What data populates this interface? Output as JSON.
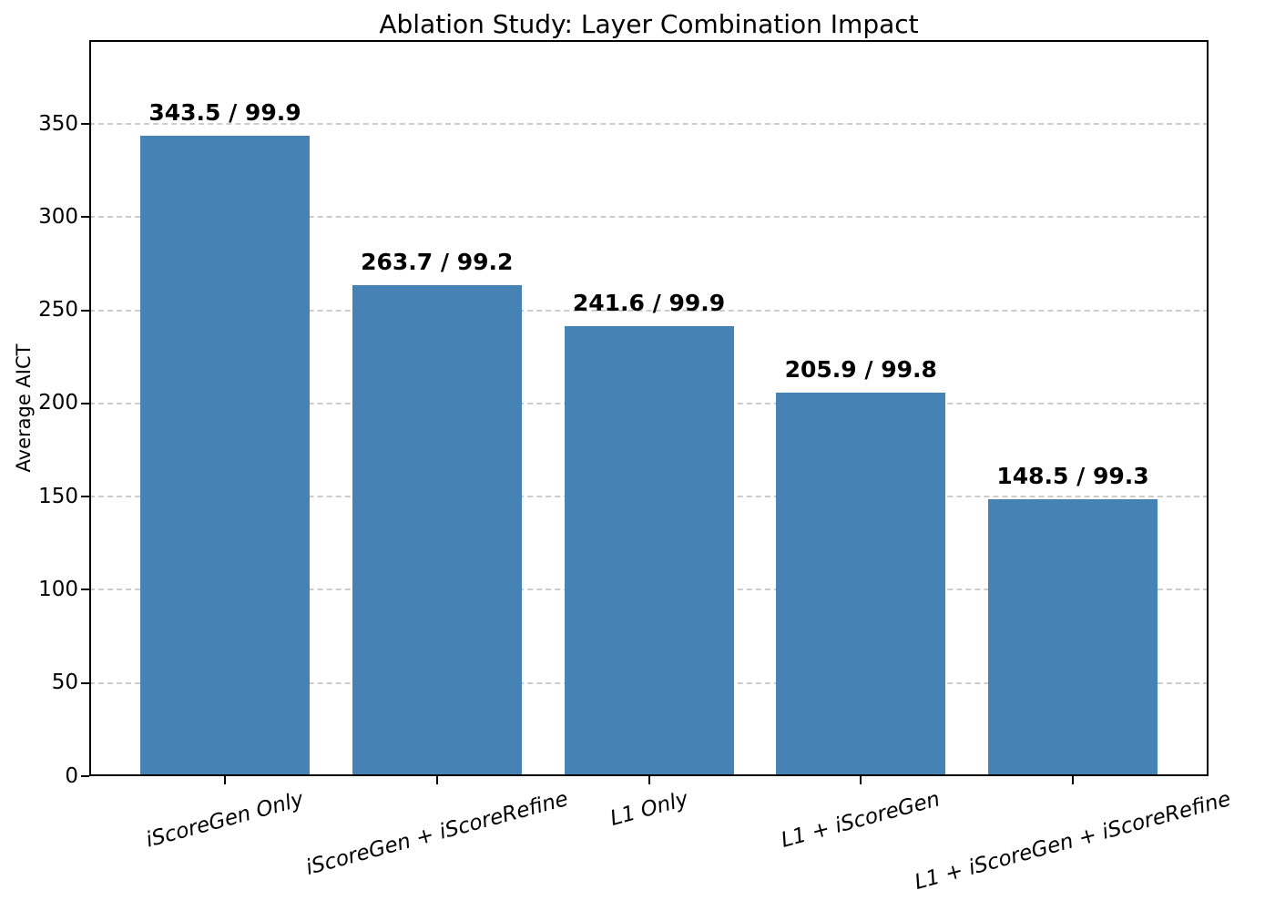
{
  "chart_data": {
    "type": "bar",
    "title": "Ablation Study: Layer Combination Impact",
    "xlabel": "",
    "ylabel": "Average AICT",
    "categories": [
      "iScoreGen Only",
      "iScoreGen + iScoreRefine",
      "L1 Only",
      "L1 + iScoreGen",
      "L1 + iScoreGen + iScoreRefine"
    ],
    "values": [
      343.5,
      263.7,
      241.6,
      205.9,
      148.5
    ],
    "bar_labels": [
      "343.5 / 99.9",
      "263.7 / 99.2",
      "241.6 / 99.9",
      "205.9 / 99.8",
      "148.5 / 99.3"
    ],
    "yticks": [
      0,
      50,
      100,
      150,
      200,
      250,
      300,
      350
    ],
    "ylim": [
      0,
      395
    ],
    "grid": "horizontal-dashed",
    "legend": "none",
    "bar_color": "#4682B4",
    "grid_color": "#cccccc",
    "axis_color": "#000000",
    "text_color": "#000000",
    "background": "#ffffff"
  }
}
